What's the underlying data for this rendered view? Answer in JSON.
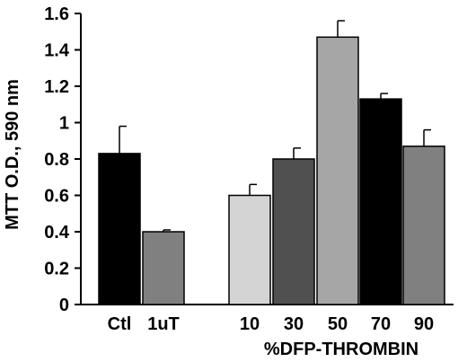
{
  "chart_data": {
    "type": "bar",
    "title": "",
    "ylabel": "MTT O.D., 590 nm",
    "xlabel": "%DFP-THROMBIN",
    "ylim": [
      0,
      1.6
    ],
    "yticks": [
      0,
      0.2,
      0.4,
      0.6,
      0.8,
      1,
      1.2,
      1.4,
      1.6
    ],
    "grid": false,
    "legend": "none",
    "bars": [
      {
        "label": "Ctl",
        "value": 0.83,
        "error": 0.15,
        "color": "#000000"
      },
      {
        "label": "1uT",
        "value": 0.4,
        "error": 0.01,
        "color": "#808080"
      },
      {
        "label": "10",
        "value": 0.6,
        "error": 0.06,
        "color": "#d4d4d4"
      },
      {
        "label": "30",
        "value": 0.8,
        "error": 0.06,
        "color": "#505050"
      },
      {
        "label": "50",
        "value": 1.47,
        "error": 0.09,
        "color": "#a6a6a6"
      },
      {
        "label": "70",
        "value": 1.13,
        "error": 0.03,
        "color": "#000000"
      },
      {
        "label": "90",
        "value": 0.87,
        "error": 0.09,
        "color": "#808080"
      }
    ]
  }
}
